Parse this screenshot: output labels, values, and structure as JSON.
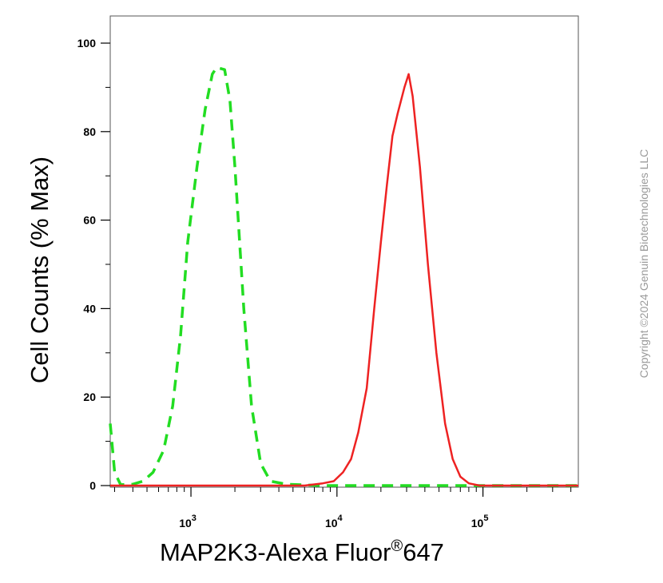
{
  "chart_data": {
    "type": "line",
    "title": "",
    "xlabel": "MAP2K3-Alexa Fluor",
    "xlabel_superscript": "®",
    "xlabel_suffix": "647",
    "ylabel": "Cell Counts (% Max)",
    "x_scale": "log",
    "xlim": [
      280,
      450000
    ],
    "ylim": [
      0,
      100
    ],
    "y_ticks": [
      0,
      20,
      40,
      60,
      80,
      100
    ],
    "y_tick_labels": [
      "0",
      "20",
      "40",
      "60",
      "80",
      "100"
    ],
    "x_major_ticks": [
      1000,
      10000,
      100000
    ],
    "x_tick_labels": [
      {
        "base": "10",
        "exp": "3"
      },
      {
        "base": "10",
        "exp": "4"
      },
      {
        "base": "10",
        "exp": "5"
      }
    ],
    "grid": false,
    "legend": "none",
    "series": [
      {
        "color": "#22dd22",
        "line_style": "dashed",
        "points": [
          [
            280,
            14
          ],
          [
            300,
            3
          ],
          [
            330,
            0.2
          ],
          [
            400,
            0.3
          ],
          [
            470,
            1
          ],
          [
            550,
            3
          ],
          [
            650,
            8
          ],
          [
            750,
            18
          ],
          [
            850,
            34
          ],
          [
            950,
            55
          ],
          [
            1100,
            72
          ],
          [
            1250,
            85
          ],
          [
            1400,
            93
          ],
          [
            1500,
            94.5
          ],
          [
            1700,
            94
          ],
          [
            1850,
            87
          ],
          [
            2000,
            72
          ],
          [
            2300,
            40
          ],
          [
            2600,
            18
          ],
          [
            3000,
            5
          ],
          [
            3500,
            1
          ],
          [
            4500,
            0.3
          ],
          [
            8000,
            0
          ],
          [
            450000,
            0
          ]
        ]
      },
      {
        "color": "#ee2222",
        "line_style": "solid",
        "points": [
          [
            280,
            0
          ],
          [
            6000,
            0
          ],
          [
            8000,
            0.5
          ],
          [
            9500,
            1
          ],
          [
            11000,
            3
          ],
          [
            12500,
            6
          ],
          [
            14000,
            12
          ],
          [
            16000,
            22
          ],
          [
            18000,
            40
          ],
          [
            20000,
            55
          ],
          [
            22000,
            68
          ],
          [
            24000,
            79
          ],
          [
            26000,
            84
          ],
          [
            29000,
            90
          ],
          [
            31000,
            93
          ],
          [
            33000,
            88
          ],
          [
            37000,
            72
          ],
          [
            42000,
            50
          ],
          [
            48000,
            30
          ],
          [
            55000,
            14
          ],
          [
            62000,
            6
          ],
          [
            70000,
            2
          ],
          [
            80000,
            0.5
          ],
          [
            95000,
            0
          ],
          [
            450000,
            0
          ]
        ]
      }
    ]
  },
  "watermark": "Copyright ©2024 Genuin Biotechnologies LLC"
}
